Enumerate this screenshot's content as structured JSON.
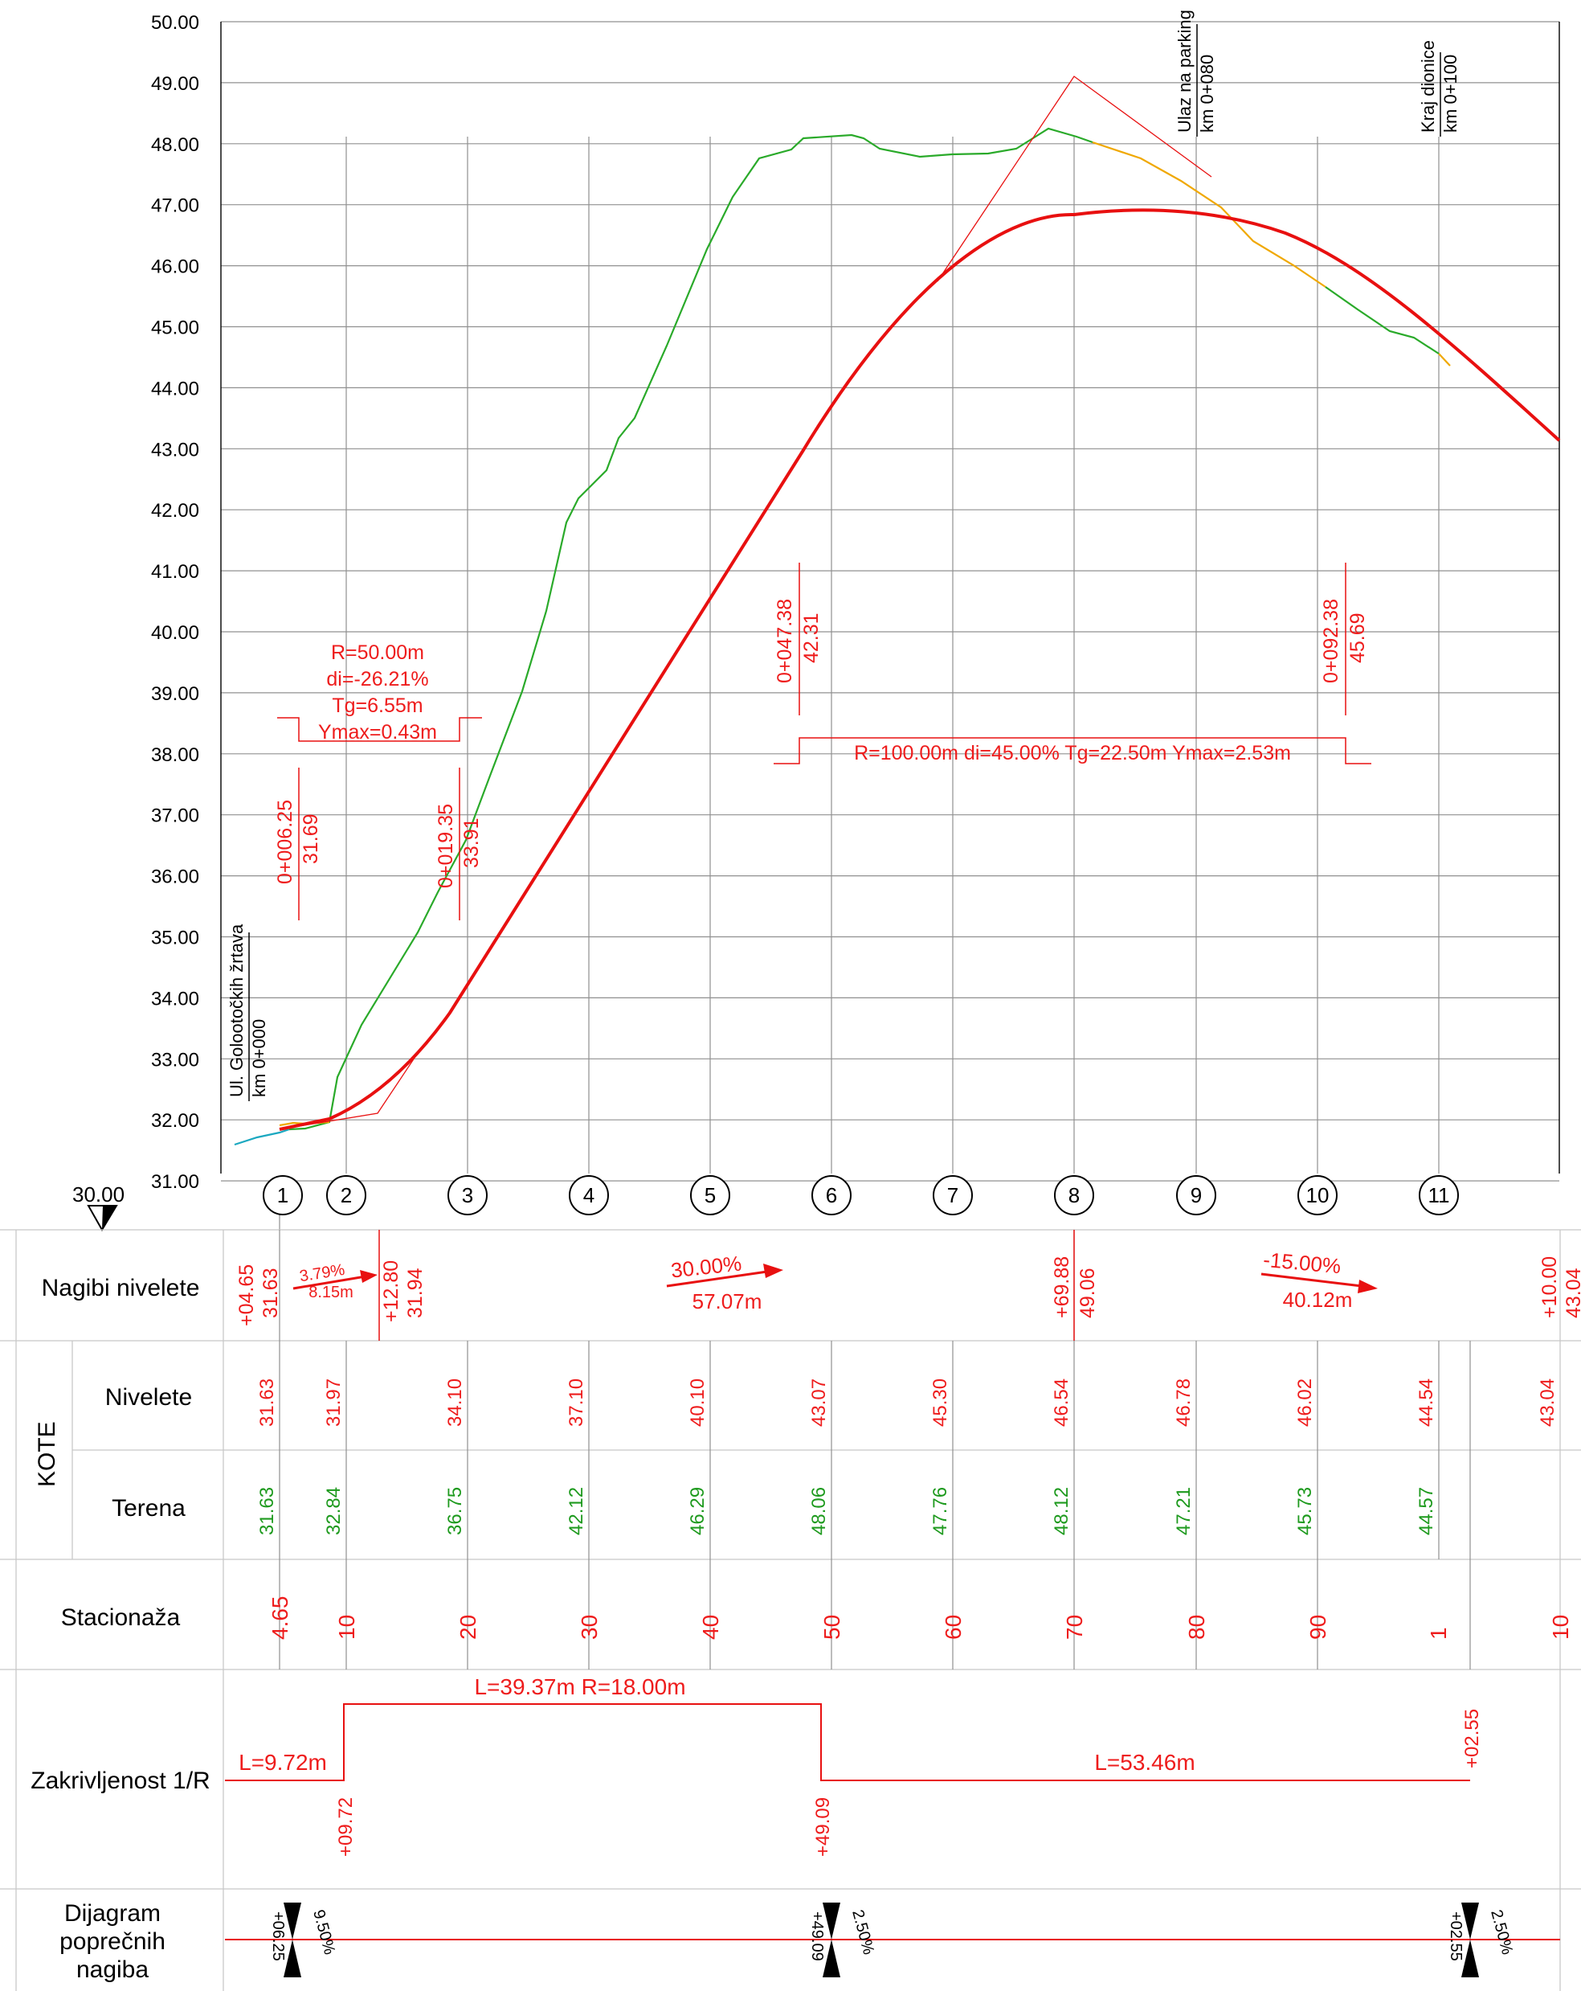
{
  "colors": {
    "design": "#e81010",
    "terrain": "#2aaa2a",
    "terrain_alt": "#f0a800",
    "terrain_start": "#1ba8c0",
    "grid": "#909090"
  },
  "axis": {
    "y_ticks": [
      "50.00",
      "49.00",
      "48.00",
      "47.00",
      "46.00",
      "45.00",
      "44.00",
      "43.00",
      "42.00",
      "41.00",
      "40.00",
      "39.00",
      "38.00",
      "37.00",
      "36.00",
      "35.00",
      "34.00",
      "33.00",
      "32.00",
      "31.00"
    ],
    "datum": "30.00"
  },
  "profile_points": [
    "1",
    "2",
    "3",
    "4",
    "5",
    "6",
    "7",
    "8",
    "9",
    "10",
    "11"
  ],
  "annotations": {
    "start_street": "Ul. Golootočkih žrtava",
    "start_km": "km 0+000",
    "parking": "Ulaz na parking",
    "parking_km": "km 0+080",
    "end": "Kraj dionice",
    "end_km": "km 0+100"
  },
  "vertical_curves": {
    "vc1": {
      "r": "R=50.00m",
      "di": "di=-26.21%",
      "tg": "Tg=6.55m",
      "ymax": "Ymax=0.43m"
    },
    "vc1_start": {
      "st": "0+006.25",
      "elev": "31.69"
    },
    "vc1_end": {
      "st": "0+019.35",
      "elev": "33.91"
    },
    "vc2": {
      "text": "R=100.00m di=45.00% Tg=22.50m Ymax=2.53m"
    },
    "vc2_start": {
      "st": "0+047.38",
      "elev": "42.31"
    },
    "vc2_end": {
      "st": "0+092.38",
      "elev": "45.69"
    }
  },
  "rows": {
    "nagibi": "Nagibi nivelete",
    "kote": "KOTE",
    "nivelete": "Nivelete",
    "terena": "Terena",
    "stacionaza": "Stacionaža",
    "zakrivljenost": "Zakrivljenost 1/R",
    "dijagram1": "Dijagram",
    "dijagram2": "poprečnih",
    "dijagram3": "nagiba"
  },
  "nagibi": {
    "p1": {
      "st": "+04.65",
      "elev": "31.63"
    },
    "p2": {
      "st": "+12.80",
      "elev": "31.94"
    },
    "p3": {
      "st": "+69.88",
      "elev": "49.06"
    },
    "p4": {
      "st": "+10.00",
      "elev": "43.04"
    },
    "g1": {
      "pct": "3.79%",
      "len": "8.15m"
    },
    "g2": {
      "pct": "30.00%",
      "len": "57.07m"
    },
    "g3": {
      "pct": "-15.00%",
      "len": "40.12m"
    }
  },
  "kote_nivelete": [
    "31.63",
    "31.97",
    "34.10",
    "37.10",
    "40.10",
    "43.07",
    "45.30",
    "46.54",
    "46.78",
    "46.02",
    "44.54",
    "43.04"
  ],
  "kote_terena": [
    "31.63",
    "32.84",
    "36.75",
    "42.12",
    "46.29",
    "48.06",
    "47.76",
    "48.12",
    "47.21",
    "45.73",
    "44.57"
  ],
  "stacionaza": [
    "4.65",
    "10",
    "20",
    "30",
    "40",
    "50",
    "60",
    "70",
    "80",
    "90",
    "1",
    "10"
  ],
  "zakrivljenost": {
    "l1": "L=9.72m",
    "arc": "L=39.37m  R=18.00m",
    "l3": "L=53.46m",
    "s1": "+09.72",
    "s2": "+49.09",
    "s3": "+02.55"
  },
  "crossfall": {
    "c1_st": "+06.25",
    "c1_pct": "9.50%",
    "c2_st": "+49.09",
    "c2_pct": "2.50%",
    "c3_st": "+02.55",
    "c3_pct": "2.50%"
  }
}
